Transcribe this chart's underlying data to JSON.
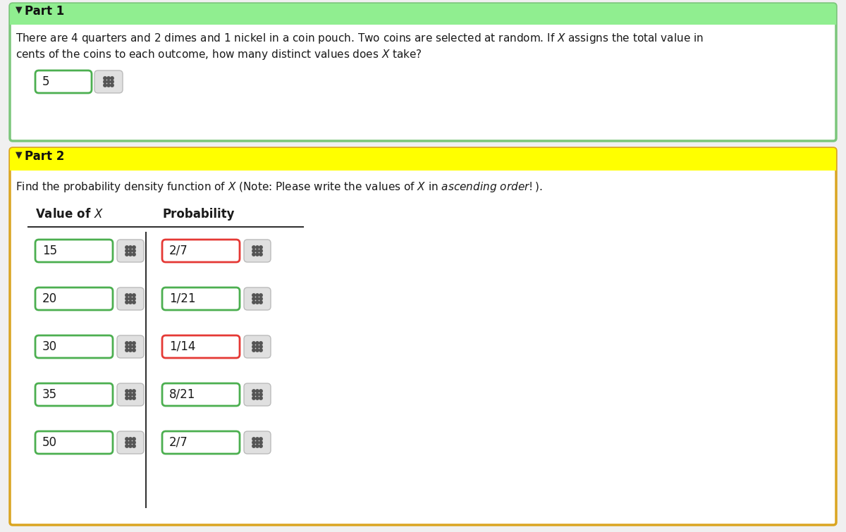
{
  "part1_header": "Part 1",
  "part1_text_line1": "There are 4 quarters and 2 dimes and 1 nickel in a coin pouch. Two coins are selected at random. If $X$ assigns the total value in",
  "part1_text_line2": "cents of the coins to each outcome, how many distinct values does $X$ take?",
  "part1_answer": "5",
  "part2_header": "Part 2",
  "part2_text": "Find the probability density function of $X$ (Note: Please write the values of $X$ in $\\it{ascending\\ order!}$).",
  "col1_header": "Value of $X$",
  "col2_header": "Probability",
  "x_values": [
    "15",
    "20",
    "30",
    "35",
    "50"
  ],
  "prob_values": [
    "2/7",
    "1/21",
    "1/14",
    "8/21",
    "2/7"
  ],
  "prob_red_border": [
    true,
    false,
    true,
    false,
    false
  ],
  "header1_bg": "#90EE90",
  "header2_bg": "#FFFF00",
  "outer1_border": "#7BC67B",
  "outer2_border": "#DAA520",
  "page_bg": "#F0F0F0",
  "card_bg": "#FFFFFF",
  "green_border": "#4CAF50",
  "red_border": "#E53935",
  "grid_bg": "#E8E8E8",
  "grid_dot_color": "#555555",
  "text_color": "#1A1A1A",
  "sep_color": "#333333"
}
